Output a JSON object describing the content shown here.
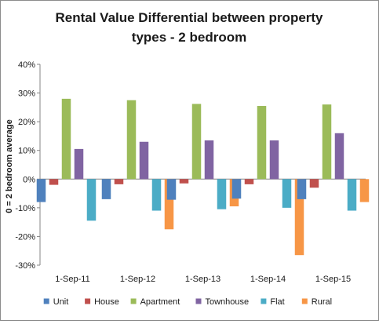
{
  "chart_data": {
    "type": "bar",
    "title_lines": [
      "Rental Value Differential between property",
      "types - 2 bedroom"
    ],
    "xlabel": "",
    "ylabel": "0 = 2 bedroom average",
    "ylim": [
      -30,
      40
    ],
    "yticks": [
      40,
      30,
      20,
      10,
      0,
      -10,
      -20,
      -30
    ],
    "ytick_labels": [
      "40%",
      "30%",
      "20%",
      "10%",
      "0%",
      "-10%",
      "-20%",
      "-30%"
    ],
    "grid": false,
    "legend_position": "bottom",
    "categories": [
      "1-Sep-11",
      "1-Sep-12",
      "1-Sep-13",
      "1-Sep-14",
      "1-Sep-15"
    ],
    "series": [
      {
        "name": "Unit",
        "color": "#4F81BD",
        "values": [
          -8,
          -7,
          -7.2,
          -6.8,
          -7
        ]
      },
      {
        "name": "House",
        "color": "#C0504D",
        "values": [
          -2,
          -1.8,
          -1.5,
          -1.8,
          -3
        ]
      },
      {
        "name": "Apartment",
        "color": "#9BBB59",
        "values": [
          28,
          27.5,
          26.2,
          25.5,
          26
        ]
      },
      {
        "name": "Townhouse",
        "color": "#8064A2",
        "values": [
          10.5,
          13,
          13.5,
          13.5,
          16
        ]
      },
      {
        "name": "Flat",
        "color": "#4BACC6",
        "values": [
          -14.5,
          -11,
          -10.5,
          -10,
          -11
        ]
      },
      {
        "name": "Rural",
        "color": "#F79646",
        "values": [
          null,
          -17.5,
          -9.5,
          -26.5,
          -8
        ]
      }
    ]
  }
}
